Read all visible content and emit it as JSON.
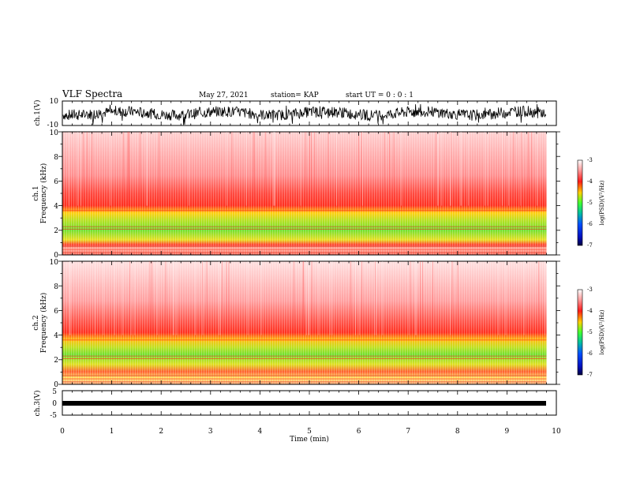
{
  "header": {
    "title": "VLF Spectra",
    "date": "May 27, 2021",
    "station": "station= KAP",
    "start": "start  UT =   0 : 0  : 1"
  },
  "chart_data": [
    {
      "type": "line",
      "panel": "ch1-waveform",
      "ylabel": "ch.1(V)",
      "ylim": [
        -10,
        10
      ],
      "yticks": [
        "10",
        "-10"
      ],
      "xlim": [
        0,
        10
      ],
      "note": "dense waveform oscillating roughly between -6 and +7 V"
    },
    {
      "type": "heatmap",
      "panel": "ch1-spectrogram",
      "ylabel_channel": "ch.1",
      "ylabel": "Frequency  (kHz)",
      "ylim": [
        0,
        10
      ],
      "yticks": [
        "0",
        "2",
        "4",
        "6",
        "8",
        "10"
      ],
      "xlim": [
        0,
        9.8
      ],
      "colorbar": {
        "label": "log(PSD)(V²/Hz)",
        "range": [
          -7,
          -3
        ],
        "ticks": [
          "-3",
          "-4",
          "-5",
          "-6",
          "-7"
        ]
      },
      "bands": [
        {
          "freq_khz": [
            0,
            1
          ],
          "level": "mixed red-orange"
        },
        {
          "freq_khz": [
            1,
            3.5
          ],
          "level": "green-yellow"
        },
        {
          "freq_khz": [
            3.5,
            5
          ],
          "level": "red-yellow"
        },
        {
          "freq_khz": [
            5,
            10
          ],
          "level": "light red"
        }
      ]
    },
    {
      "type": "heatmap",
      "panel": "ch2-spectrogram",
      "ylabel_channel": "ch.2",
      "ylabel": "Frequency  (kHz)",
      "ylim": [
        0,
        10
      ],
      "yticks": [
        "0",
        "2",
        "4",
        "6",
        "8",
        "10"
      ],
      "xlim": [
        0,
        9.8
      ],
      "colorbar": {
        "label": "log(PSD)(V²/Hz)",
        "range": [
          -7,
          -3
        ],
        "ticks": [
          "-3",
          "-4",
          "-5",
          "-6",
          "-7"
        ]
      },
      "bands": [
        {
          "freq_khz": [
            0,
            1
          ],
          "level": "mixed orange-yellow"
        },
        {
          "freq_khz": [
            1,
            3.5
          ],
          "level": "green-yellow"
        },
        {
          "freq_khz": [
            3.5,
            5
          ],
          "level": "red-yellow"
        },
        {
          "freq_khz": [
            5,
            10
          ],
          "level": "light red"
        }
      ]
    },
    {
      "type": "line",
      "panel": "ch3-waveform",
      "ylabel": "ch.3(V)",
      "ylim": [
        -5,
        5
      ],
      "yticks": [
        "5",
        "0",
        "-5"
      ],
      "xlim": [
        0,
        10
      ],
      "note": "thin band near -1 V"
    }
  ],
  "xaxis": {
    "label": "Time  (min)",
    "ticks": [
      "0",
      "1",
      "2",
      "3",
      "4",
      "5",
      "6",
      "7",
      "8",
      "9",
      "10"
    ]
  },
  "colors": {
    "high": "#ff2a1a",
    "mid": "#ffe000",
    "low": "#33ee22",
    "pale": "#ffd8d8"
  }
}
